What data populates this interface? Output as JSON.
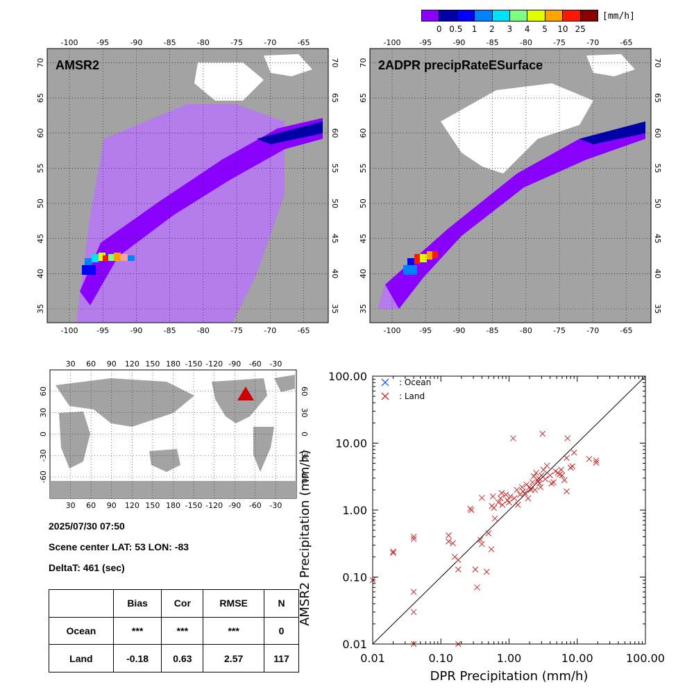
{
  "colorbar": {
    "labels": [
      "0",
      "0.5",
      "1",
      "2",
      "3",
      "4",
      "5",
      "10",
      "25"
    ],
    "unit": "[mm/h]",
    "colors": [
      "#8a00ff",
      "#0000a8",
      "#0000ff",
      "#0082ff",
      "#00e0ff",
      "#7dff82",
      "#e1ff00",
      "#ffa500",
      "#ff1800",
      "#8a0000"
    ]
  },
  "maps": {
    "left_title": "AMSR2",
    "right_title": "2ADPR precipRateESurface",
    "lon_ticks": [
      "-100",
      "-95",
      "-90",
      "-85",
      "-80",
      "-75",
      "-70",
      "-65"
    ],
    "lat_ticks": [
      "35",
      "40",
      "45",
      "50",
      "55",
      "60",
      "65",
      "70"
    ]
  },
  "globe": {
    "lon_ticks": [
      "30",
      "60",
      "90",
      "120",
      "150",
      "180",
      "-150",
      "-120",
      "-90",
      "-60",
      "-30"
    ],
    "lat_ticks": [
      "60",
      "30",
      "0",
      "-30",
      "-60"
    ]
  },
  "info": {
    "datetime": "2025/07/30 07:50",
    "scene_center": "Scene center LAT: 53   LON: -83",
    "deltat": "DeltaT:  461 (sec)"
  },
  "stats_table": {
    "headers": [
      "",
      "Bias",
      "Cor",
      "RMSE",
      "N"
    ],
    "rows": [
      [
        "Ocean",
        "***",
        "***",
        "***",
        "0"
      ],
      [
        "Land",
        "-0.18",
        "0.63",
        "2.57",
        "117"
      ]
    ]
  },
  "chart_data": {
    "type": "scatter",
    "xlabel": "DPR Precipitation (mm/h)",
    "ylabel": "AMSR2 Precipitation (mm/h)",
    "xscale": "log",
    "yscale": "log",
    "xlim": [
      0.01,
      100
    ],
    "ylim": [
      0.01,
      100
    ],
    "x_tick_labels": [
      "0.01",
      "0.10",
      "1.00",
      "10.00",
      "100.00"
    ],
    "y_tick_labels": [
      "0.01",
      "0.10",
      "1.00",
      "10.00",
      "100.00"
    ],
    "legend": [
      "Ocean",
      "Land"
    ],
    "legend_colors": {
      "Ocean": "#1565ff",
      "Land": "#c62828"
    },
    "series": [
      {
        "name": "Ocean",
        "points": []
      },
      {
        "name": "Land",
        "points": [
          [
            0.01,
            0.09
          ],
          [
            0.02,
            0.24
          ],
          [
            0.02,
            0.23
          ],
          [
            0.04,
            0.4
          ],
          [
            0.04,
            0.37
          ],
          [
            0.04,
            0.06
          ],
          [
            0.04,
            0.03
          ],
          [
            0.04,
            0.01
          ],
          [
            0.13,
            0.42
          ],
          [
            0.13,
            0.34
          ],
          [
            0.15,
            0.32
          ],
          [
            0.16,
            0.2
          ],
          [
            0.18,
            0.13
          ],
          [
            0.18,
            0.18
          ],
          [
            0.18,
            0.01
          ],
          [
            0.27,
            1.05
          ],
          [
            0.28,
            1.0
          ],
          [
            0.32,
            0.13
          ],
          [
            0.34,
            0.07
          ],
          [
            0.38,
            0.36
          ],
          [
            0.4,
            0.31
          ],
          [
            0.4,
            1.52
          ],
          [
            0.47,
            0.12
          ],
          [
            0.5,
            0.45
          ],
          [
            0.55,
            0.26
          ],
          [
            0.56,
            1.15
          ],
          [
            0.58,
            1.6
          ],
          [
            0.6,
            1.08
          ],
          [
            0.62,
            0.75
          ],
          [
            0.7,
            1.3
          ],
          [
            0.75,
            1.5
          ],
          [
            0.78,
            1.8
          ],
          [
            0.8,
            1.2
          ],
          [
            0.9,
            1.7
          ],
          [
            0.95,
            1.4
          ],
          [
            1.0,
            1.3
          ],
          [
            1.05,
            1.6
          ],
          [
            1.15,
            11.8
          ],
          [
            1.2,
            1.5
          ],
          [
            1.3,
            2.0
          ],
          [
            1.35,
            1.2
          ],
          [
            1.45,
            1.7
          ],
          [
            1.55,
            2.2
          ],
          [
            1.6,
            1.9
          ],
          [
            1.7,
            1.8
          ],
          [
            1.8,
            2.4
          ],
          [
            1.9,
            1.5
          ],
          [
            2.0,
            2.2
          ],
          [
            2.1,
            2.0
          ],
          [
            2.2,
            2.6
          ],
          [
            2.3,
            3.2
          ],
          [
            2.4,
            2.0
          ],
          [
            2.5,
            3.6
          ],
          [
            2.6,
            2.8
          ],
          [
            2.7,
            3.0
          ],
          [
            2.8,
            2.5
          ],
          [
            2.9,
            2.2
          ],
          [
            3.0,
            3.3
          ],
          [
            3.1,
            13.8
          ],
          [
            3.2,
            4.0
          ],
          [
            3.4,
            2.9
          ],
          [
            3.6,
            4.6
          ],
          [
            4.0,
            3.3
          ],
          [
            4.2,
            2.5
          ],
          [
            4.5,
            2.6
          ],
          [
            4.8,
            3.8
          ],
          [
            5.2,
            3.6
          ],
          [
            5.5,
            3.4
          ],
          [
            5.8,
            4.0
          ],
          [
            6.0,
            3.3
          ],
          [
            6.5,
            2.8
          ],
          [
            7.0,
            6.0
          ],
          [
            7.2,
            11.8
          ],
          [
            7.0,
            1.9
          ],
          [
            8.0,
            4.3
          ],
          [
            8.5,
            4.5
          ],
          [
            9.0,
            7.2
          ],
          [
            15.0,
            5.8
          ],
          [
            19.0,
            5.5
          ],
          [
            19.0,
            5.1
          ]
        ]
      }
    ]
  }
}
